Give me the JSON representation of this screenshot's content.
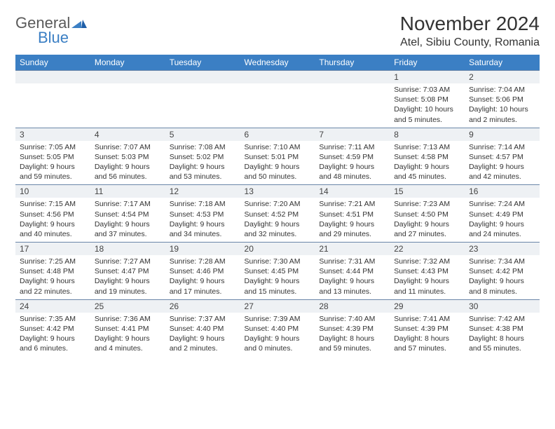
{
  "logo": {
    "general": "General",
    "blue": "Blue"
  },
  "title": "November 2024",
  "location": "Atel, Sibiu County, Romania",
  "colors": {
    "header_bg": "#3b7fc4",
    "header_text": "#ffffff",
    "dayhead_bg": "#eef1f4",
    "border": "#6a86a8",
    "text": "#333333"
  },
  "weekdays": [
    "Sunday",
    "Monday",
    "Tuesday",
    "Wednesday",
    "Thursday",
    "Friday",
    "Saturday"
  ],
  "weeks": [
    [
      null,
      null,
      null,
      null,
      null,
      {
        "n": 1,
        "sr": "7:03 AM",
        "ss": "5:08 PM",
        "dl": "10 hours and 5 minutes."
      },
      {
        "n": 2,
        "sr": "7:04 AM",
        "ss": "5:06 PM",
        "dl": "10 hours and 2 minutes."
      }
    ],
    [
      {
        "n": 3,
        "sr": "7:05 AM",
        "ss": "5:05 PM",
        "dl": "9 hours and 59 minutes."
      },
      {
        "n": 4,
        "sr": "7:07 AM",
        "ss": "5:03 PM",
        "dl": "9 hours and 56 minutes."
      },
      {
        "n": 5,
        "sr": "7:08 AM",
        "ss": "5:02 PM",
        "dl": "9 hours and 53 minutes."
      },
      {
        "n": 6,
        "sr": "7:10 AM",
        "ss": "5:01 PM",
        "dl": "9 hours and 50 minutes."
      },
      {
        "n": 7,
        "sr": "7:11 AM",
        "ss": "4:59 PM",
        "dl": "9 hours and 48 minutes."
      },
      {
        "n": 8,
        "sr": "7:13 AM",
        "ss": "4:58 PM",
        "dl": "9 hours and 45 minutes."
      },
      {
        "n": 9,
        "sr": "7:14 AM",
        "ss": "4:57 PM",
        "dl": "9 hours and 42 minutes."
      }
    ],
    [
      {
        "n": 10,
        "sr": "7:15 AM",
        "ss": "4:56 PM",
        "dl": "9 hours and 40 minutes."
      },
      {
        "n": 11,
        "sr": "7:17 AM",
        "ss": "4:54 PM",
        "dl": "9 hours and 37 minutes."
      },
      {
        "n": 12,
        "sr": "7:18 AM",
        "ss": "4:53 PM",
        "dl": "9 hours and 34 minutes."
      },
      {
        "n": 13,
        "sr": "7:20 AM",
        "ss": "4:52 PM",
        "dl": "9 hours and 32 minutes."
      },
      {
        "n": 14,
        "sr": "7:21 AM",
        "ss": "4:51 PM",
        "dl": "9 hours and 29 minutes."
      },
      {
        "n": 15,
        "sr": "7:23 AM",
        "ss": "4:50 PM",
        "dl": "9 hours and 27 minutes."
      },
      {
        "n": 16,
        "sr": "7:24 AM",
        "ss": "4:49 PM",
        "dl": "9 hours and 24 minutes."
      }
    ],
    [
      {
        "n": 17,
        "sr": "7:25 AM",
        "ss": "4:48 PM",
        "dl": "9 hours and 22 minutes."
      },
      {
        "n": 18,
        "sr": "7:27 AM",
        "ss": "4:47 PM",
        "dl": "9 hours and 19 minutes."
      },
      {
        "n": 19,
        "sr": "7:28 AM",
        "ss": "4:46 PM",
        "dl": "9 hours and 17 minutes."
      },
      {
        "n": 20,
        "sr": "7:30 AM",
        "ss": "4:45 PM",
        "dl": "9 hours and 15 minutes."
      },
      {
        "n": 21,
        "sr": "7:31 AM",
        "ss": "4:44 PM",
        "dl": "9 hours and 13 minutes."
      },
      {
        "n": 22,
        "sr": "7:32 AM",
        "ss": "4:43 PM",
        "dl": "9 hours and 11 minutes."
      },
      {
        "n": 23,
        "sr": "7:34 AM",
        "ss": "4:42 PM",
        "dl": "9 hours and 8 minutes."
      }
    ],
    [
      {
        "n": 24,
        "sr": "7:35 AM",
        "ss": "4:42 PM",
        "dl": "9 hours and 6 minutes."
      },
      {
        "n": 25,
        "sr": "7:36 AM",
        "ss": "4:41 PM",
        "dl": "9 hours and 4 minutes."
      },
      {
        "n": 26,
        "sr": "7:37 AM",
        "ss": "4:40 PM",
        "dl": "9 hours and 2 minutes."
      },
      {
        "n": 27,
        "sr": "7:39 AM",
        "ss": "4:40 PM",
        "dl": "9 hours and 0 minutes."
      },
      {
        "n": 28,
        "sr": "7:40 AM",
        "ss": "4:39 PM",
        "dl": "8 hours and 59 minutes."
      },
      {
        "n": 29,
        "sr": "7:41 AM",
        "ss": "4:39 PM",
        "dl": "8 hours and 57 minutes."
      },
      {
        "n": 30,
        "sr": "7:42 AM",
        "ss": "4:38 PM",
        "dl": "8 hours and 55 minutes."
      }
    ]
  ],
  "labels": {
    "sunrise": "Sunrise:",
    "sunset": "Sunset:",
    "daylight": "Daylight:"
  }
}
